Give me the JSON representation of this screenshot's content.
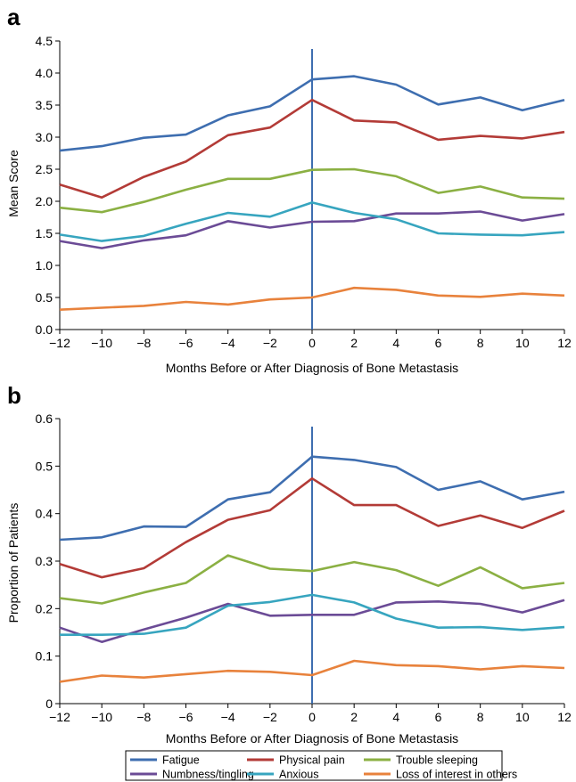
{
  "chart_data": [
    {
      "type": "line",
      "panel_label": "a",
      "xlabel": "Months Before or After Diagnosis of Bone Metastasis",
      "ylabel": "Mean Score",
      "x": [
        -12,
        -10,
        -8,
        -6,
        -4,
        -2,
        0,
        2,
        4,
        6,
        8,
        10,
        12
      ],
      "xlim": [
        -12,
        12
      ],
      "ylim": [
        0,
        4.5
      ],
      "xticks": [
        -12,
        -10,
        -8,
        -6,
        -4,
        -2,
        0,
        2,
        4,
        6,
        8,
        10,
        12
      ],
      "xtick_labels": [
        "−12",
        "−10",
        "−8",
        "−6",
        "−4",
        "−2",
        "0",
        "2",
        "4",
        "6",
        "8",
        "10",
        "12"
      ],
      "yticks": [
        0,
        0.5,
        1,
        1.5,
        2,
        2.5,
        3,
        3.5,
        4,
        4.5
      ],
      "ytick_labels": [
        "0.0",
        "0.5",
        "1.0",
        "1.5",
        "2.0",
        "2.5",
        "3.0",
        "3.5",
        "4.0",
        "4.5"
      ],
      "reference_line_x": 0,
      "grid": false,
      "series": [
        {
          "name": "Fatigue",
          "color": "#3e6eb0",
          "values": [
            2.79,
            2.86,
            2.99,
            3.04,
            3.34,
            3.48,
            3.9,
            3.95,
            3.82,
            3.51,
            3.62,
            3.42,
            3.58
          ]
        },
        {
          "name": "Physical pain",
          "color": "#b33b37",
          "values": [
            2.26,
            2.06,
            2.38,
            2.62,
            3.03,
            3.15,
            3.58,
            3.26,
            3.23,
            2.96,
            3.02,
            2.98,
            3.08
          ]
        },
        {
          "name": "Trouble sleeping",
          "color": "#8bb043",
          "values": [
            1.9,
            1.83,
            1.99,
            2.18,
            2.35,
            2.35,
            2.49,
            2.5,
            2.39,
            2.13,
            2.23,
            2.06,
            2.04
          ]
        },
        {
          "name": "Numbness/tingling",
          "color": "#6b4b96",
          "values": [
            1.38,
            1.27,
            1.39,
            1.47,
            1.69,
            1.59,
            1.68,
            1.69,
            1.81,
            1.81,
            1.84,
            1.7,
            1.8
          ]
        },
        {
          "name": "Anxious",
          "color": "#37a5bf",
          "values": [
            1.48,
            1.38,
            1.46,
            1.65,
            1.82,
            1.76,
            1.98,
            1.82,
            1.72,
            1.5,
            1.48,
            1.47,
            1.52
          ]
        },
        {
          "name": "Loss of interest in others",
          "color": "#e8823c",
          "values": [
            0.31,
            0.34,
            0.37,
            0.43,
            0.39,
            0.47,
            0.5,
            0.65,
            0.62,
            0.53,
            0.51,
            0.56,
            0.53
          ]
        }
      ]
    },
    {
      "type": "line",
      "panel_label": "b",
      "xlabel": "Months Before or After Diagnosis of Bone Metastasis",
      "ylabel": "Proportion of Patients",
      "x": [
        -12,
        -10,
        -8,
        -6,
        -4,
        -2,
        0,
        2,
        4,
        6,
        8,
        10,
        12
      ],
      "xlim": [
        -12,
        12
      ],
      "ylim": [
        0,
        0.6
      ],
      "xticks": [
        -12,
        -10,
        -8,
        -6,
        -4,
        -2,
        0,
        2,
        4,
        6,
        8,
        10,
        12
      ],
      "xtick_labels": [
        "−12",
        "−10",
        "−8",
        "−6",
        "−4",
        "−2",
        "0",
        "2",
        "4",
        "6",
        "8",
        "10",
        "12"
      ],
      "yticks": [
        0,
        0.1,
        0.2,
        0.3,
        0.4,
        0.5,
        0.6
      ],
      "ytick_labels": [
        "0",
        "0.1",
        "0.2",
        "0.3",
        "0.4",
        "0.5",
        "0.6"
      ],
      "reference_line_x": 0,
      "grid": false,
      "series": [
        {
          "name": "Fatigue",
          "color": "#3e6eb0",
          "values": [
            0.345,
            0.35,
            0.373,
            0.372,
            0.43,
            0.445,
            0.52,
            0.513,
            0.498,
            0.45,
            0.468,
            0.43,
            0.446
          ]
        },
        {
          "name": "Physical pain",
          "color": "#b33b37",
          "values": [
            0.294,
            0.266,
            0.285,
            0.34,
            0.387,
            0.407,
            0.474,
            0.418,
            0.418,
            0.374,
            0.396,
            0.37,
            0.406
          ]
        },
        {
          "name": "Trouble sleeping",
          "color": "#8bb043",
          "values": [
            0.222,
            0.211,
            0.234,
            0.254,
            0.312,
            0.284,
            0.279,
            0.298,
            0.281,
            0.248,
            0.287,
            0.243,
            0.254
          ]
        },
        {
          "name": "Numbness/tingling",
          "color": "#6b4b96",
          "values": [
            0.16,
            0.13,
            0.156,
            0.181,
            0.21,
            0.185,
            0.187,
            0.187,
            0.213,
            0.215,
            0.21,
            0.192,
            0.218
          ]
        },
        {
          "name": "Anxious",
          "color": "#37a5bf",
          "values": [
            0.145,
            0.145,
            0.147,
            0.16,
            0.206,
            0.214,
            0.229,
            0.213,
            0.179,
            0.16,
            0.161,
            0.155,
            0.161
          ]
        },
        {
          "name": "Loss of interest in others",
          "color": "#e8823c",
          "values": [
            0.046,
            0.059,
            0.055,
            0.062,
            0.069,
            0.067,
            0.06,
            0.09,
            0.081,
            0.079,
            0.072,
            0.079,
            0.075
          ]
        }
      ]
    }
  ],
  "legend": {
    "placement": "bottom-center",
    "items": [
      {
        "label": "Fatigue",
        "color": "#3e6eb0"
      },
      {
        "label": "Physical pain",
        "color": "#b33b37"
      },
      {
        "label": "Trouble sleeping",
        "color": "#8bb043"
      },
      {
        "label": "Numbness/tingling",
        "color": "#6b4b96"
      },
      {
        "label": "Anxious",
        "color": "#37a5bf"
      },
      {
        "label": "Loss of interest in others",
        "color": "#e8823c"
      }
    ]
  }
}
